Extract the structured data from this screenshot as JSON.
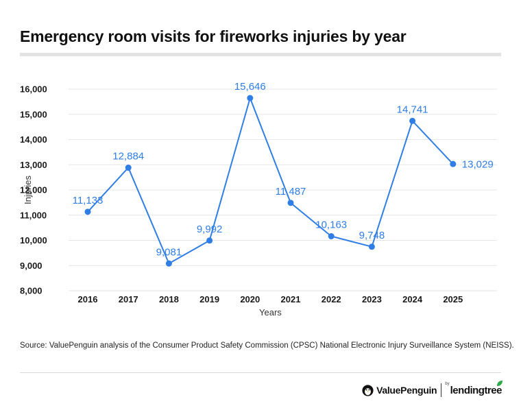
{
  "title": "Emergency room visits for fireworks injuries by year",
  "source": "Source: ValuePenguin analysis of the Consumer Product Safety Commission (CPSC) National Electronic Injury Surveillance System (NEISS).",
  "brand": {
    "primary": "ValuePenguin",
    "by": "by",
    "partner": "lendingtree",
    "penguin_icon": "penguin-icon",
    "leaf_icon": "leaf-icon"
  },
  "colors": {
    "series": "#2f7ee6",
    "grid": "#e6e6e6",
    "title_rule": "#e3e3e3"
  },
  "chart_data": {
    "type": "line",
    "title": "Emergency room visits for fireworks injuries by year",
    "xlabel": "Years",
    "ylabel": "Injuries",
    "x": [
      "2016",
      "2017",
      "2018",
      "2019",
      "2020",
      "2021",
      "2022",
      "2023",
      "2024",
      "2025"
    ],
    "values": [
      11133,
      12884,
      9081,
      9992,
      15646,
      11487,
      10163,
      9748,
      14741,
      13029
    ],
    "data_labels": [
      "11,133",
      "12,884",
      "9,081",
      "9,992",
      "15,646",
      "11,487",
      "10,163",
      "9,748",
      "14,741",
      "13,029"
    ],
    "ylim": [
      8000,
      16000
    ],
    "yticks": [
      8000,
      9000,
      10000,
      11000,
      12000,
      13000,
      14000,
      15000,
      16000
    ],
    "ytick_labels": [
      "8,000",
      "9,000",
      "10,000",
      "11,000",
      "12,000",
      "13,000",
      "14,000",
      "15,000",
      "16,000"
    ],
    "grid": true,
    "legend": "none"
  }
}
